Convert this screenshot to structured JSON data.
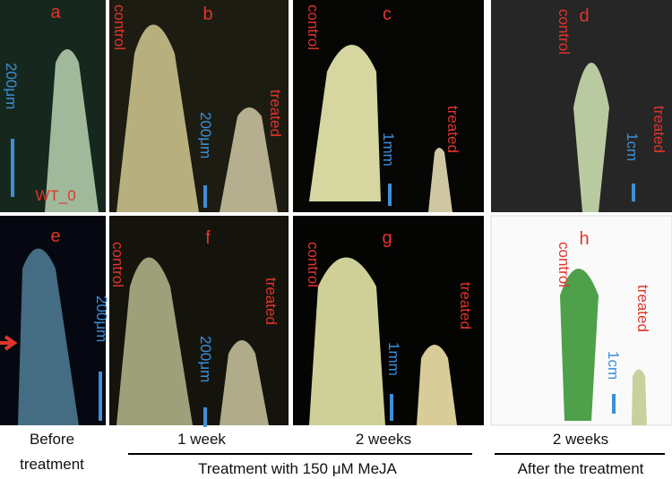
{
  "panels": [
    {
      "letter": "a",
      "scale": "200μm",
      "note": "WT_0"
    },
    {
      "letter": "b",
      "control": "control",
      "treated": "treated",
      "scale": "200μm"
    },
    {
      "letter": "c",
      "control": "control",
      "treated": "treated",
      "scale": "1mm"
    },
    {
      "letter": "d",
      "control": "control",
      "treated": "treated",
      "scale": "1cm"
    },
    {
      "letter": "e",
      "scale": "200μm"
    },
    {
      "letter": "f",
      "control": "control",
      "treated": "treated",
      "scale": "200μm"
    },
    {
      "letter": "g",
      "control": "control",
      "treated": "treated",
      "scale": "1mm"
    },
    {
      "letter": "h",
      "control": "control",
      "treated": "treated",
      "scale": "1cm"
    }
  ],
  "captions": {
    "before_line1": "Before",
    "before_line2": "treatment",
    "week1": "1 week",
    "weeks2_mid": "2 weeks",
    "treatment": "Treatment with 150 μM MeJA",
    "weeks2_right": "2 weeks",
    "after": "After the treatment"
  }
}
